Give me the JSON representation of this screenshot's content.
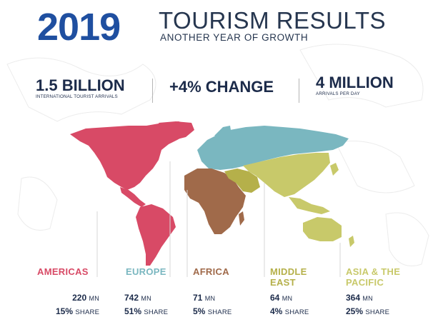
{
  "header": {
    "year": "2019",
    "title": "TOURISM RESULTS",
    "subtitle": "ANOTHER YEAR OF GROWTH"
  },
  "stats": [
    {
      "value": "1.5 BILLION",
      "label": "INTERNATIONAL TOURIST ARRIVALS"
    },
    {
      "value": "+4% CHANGE",
      "label": ""
    },
    {
      "value": "4 MILLION",
      "label": "ARRIVALS PER DAY"
    }
  ],
  "regions": [
    {
      "name": "AMERICAS",
      "arrivals": "220",
      "arrivals_unit": "MN",
      "share": "15%",
      "share_unit": "SHARE",
      "color": "#d84a66"
    },
    {
      "name": "EUROPE",
      "arrivals": "742",
      "arrivals_unit": "MN",
      "share": "51%",
      "share_unit": "SHARE",
      "color": "#7ab7c0"
    },
    {
      "name": "AFRICA",
      "arrivals": "71",
      "arrivals_unit": "MN",
      "share": "5%",
      "share_unit": "SHARE",
      "color": "#a06a4a"
    },
    {
      "name": "MIDDLE EAST",
      "arrivals": "64",
      "arrivals_unit": "MN",
      "share": "4%",
      "share_unit": "SHARE",
      "color": "#b5b04a"
    },
    {
      "name": "ASIA & THE PACIFIC",
      "arrivals": "364",
      "arrivals_unit": "MN",
      "share": "25%",
      "share_unit": "SHARE",
      "color": "#c8c96a"
    }
  ],
  "colors": {
    "title_blue": "#1f4fa0",
    "text_navy": "#1c2b4a",
    "americas": "#d84a66",
    "europe": "#7ab7c0",
    "africa": "#a06a4a",
    "middle_east": "#b5b04a",
    "asia_pacific": "#c8c96a"
  }
}
